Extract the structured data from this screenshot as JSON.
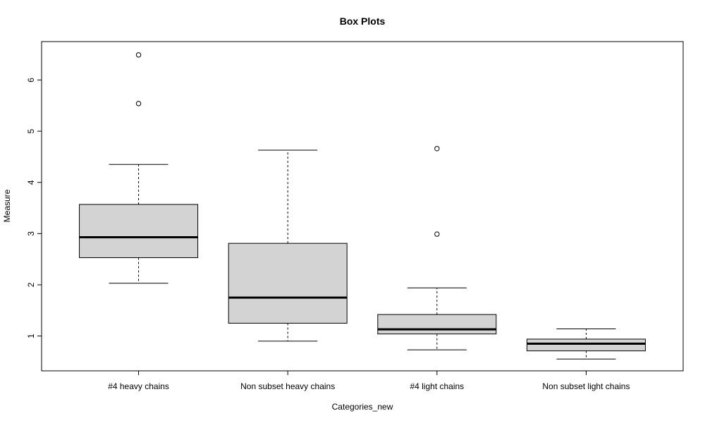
{
  "chart_data": {
    "type": "boxplot",
    "title": "Box Plots",
    "xlabel": "Categories_new",
    "ylabel": "Measure",
    "ylim": [
      0.32,
      6.75
    ],
    "yticks": [
      1,
      2,
      3,
      4,
      5,
      6
    ],
    "grid": false,
    "legend": "none",
    "box_fill": "#d3d3d3",
    "categories": [
      "#4 heavy chains",
      "Non subset heavy chains",
      "#4 light chains",
      "Non subset light chains"
    ],
    "boxes": [
      {
        "category": "#4 heavy chains",
        "whisker_low": 2.03,
        "q1": 2.53,
        "median": 2.93,
        "q3": 3.57,
        "whisker_high": 4.35,
        "outliers": [
          5.54,
          6.49
        ]
      },
      {
        "category": "Non subset heavy chains",
        "whisker_low": 0.9,
        "q1": 1.25,
        "median": 1.75,
        "q3": 2.81,
        "whisker_high": 4.63,
        "outliers": []
      },
      {
        "category": "#4 light chains",
        "whisker_low": 0.73,
        "q1": 1.04,
        "median": 1.13,
        "q3": 1.42,
        "whisker_high": 1.94,
        "outliers": [
          2.99,
          4.66
        ]
      },
      {
        "category": "Non subset light chains",
        "whisker_low": 0.55,
        "q1": 0.71,
        "median": 0.85,
        "q3": 0.94,
        "whisker_high": 1.14,
        "outliers": []
      }
    ]
  }
}
